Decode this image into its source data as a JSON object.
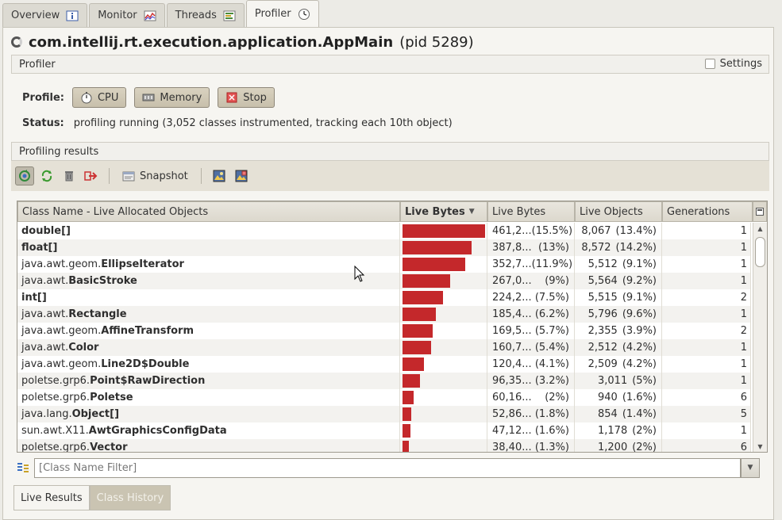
{
  "tabs": [
    {
      "label": "Overview",
      "icon": "info-icon"
    },
    {
      "label": "Monitor",
      "icon": "chart-icon"
    },
    {
      "label": "Threads",
      "icon": "threads-icon"
    },
    {
      "label": "Profiler",
      "icon": "clock-icon"
    }
  ],
  "app": {
    "main_class": "com.intellij.rt.execution.application.AppMain",
    "pid": "(pid 5289)"
  },
  "profiler_section": {
    "title": "Profiler",
    "settings_label": "Settings"
  },
  "profile": {
    "label": "Profile:",
    "cpu": "CPU",
    "memory": "Memory",
    "stop": "Stop"
  },
  "status": {
    "label": "Status:",
    "text": "profiling running (3,052 classes instrumented, tracking each 10th object)"
  },
  "results_section": {
    "title": "Profiling results"
  },
  "toolbar": {
    "snapshot": "Snapshot"
  },
  "table": {
    "columns": [
      "Class Name - Live Allocated Objects",
      "Live Bytes",
      "Live Bytes",
      "Live Objects",
      "Generations"
    ],
    "rows": [
      {
        "prefix": "",
        "name": "double[]",
        "bar_pct": 100,
        "bytes": "461,2...",
        "bytes_pct": "(15.5%)",
        "objects": "8,067",
        "objects_pct": "(13.4%)",
        "gen": "1"
      },
      {
        "prefix": "",
        "name": "float[]",
        "bar_pct": 84,
        "bytes": "387,8...",
        "bytes_pct": "(13%)",
        "objects": "8,572",
        "objects_pct": "(14.2%)",
        "gen": "1"
      },
      {
        "prefix": "java.awt.geom.",
        "name": "EllipseIterator",
        "bar_pct": 76,
        "bytes": "352,7...",
        "bytes_pct": "(11.9%)",
        "objects": "5,512",
        "objects_pct": "(9.1%)",
        "gen": "1"
      },
      {
        "prefix": "java.awt.",
        "name": "BasicStroke",
        "bar_pct": 58,
        "bytes": "267,0...",
        "bytes_pct": "(9%)",
        "objects": "5,564",
        "objects_pct": "(9.2%)",
        "gen": "1"
      },
      {
        "prefix": "",
        "name": "int[]",
        "bar_pct": 49,
        "bytes": "224,2...",
        "bytes_pct": "(7.5%)",
        "objects": "5,515",
        "objects_pct": "(9.1%)",
        "gen": "2"
      },
      {
        "prefix": "java.awt.",
        "name": "Rectangle",
        "bar_pct": 40,
        "bytes": "185,4...",
        "bytes_pct": "(6.2%)",
        "objects": "5,796",
        "objects_pct": "(9.6%)",
        "gen": "1"
      },
      {
        "prefix": "java.awt.geom.",
        "name": "AffineTransform",
        "bar_pct": 37,
        "bytes": "169,5...",
        "bytes_pct": "(5.7%)",
        "objects": "2,355",
        "objects_pct": "(3.9%)",
        "gen": "2"
      },
      {
        "prefix": "java.awt.",
        "name": "Color",
        "bar_pct": 35,
        "bytes": "160,7...",
        "bytes_pct": "(5.4%)",
        "objects": "2,512",
        "objects_pct": "(4.2%)",
        "gen": "1"
      },
      {
        "prefix": "java.awt.geom.",
        "name": "Line2D$Double",
        "bar_pct": 26,
        "bytes": "120,4...",
        "bytes_pct": "(4.1%)",
        "objects": "2,509",
        "objects_pct": "(4.2%)",
        "gen": "1"
      },
      {
        "prefix": "poletse.grp6.",
        "name": "Point$RawDirection",
        "bar_pct": 21,
        "bytes": "96,35...",
        "bytes_pct": "(3.2%)",
        "objects": "3,011",
        "objects_pct": "(5%)",
        "gen": "1"
      },
      {
        "prefix": "poletse.grp6.",
        "name": "Poletse",
        "bar_pct": 13,
        "bytes": "60,16...",
        "bytes_pct": "(2%)",
        "objects": "940",
        "objects_pct": "(1.6%)",
        "gen": "6"
      },
      {
        "prefix": "java.lang.",
        "name": "Object[]",
        "bar_pct": 11,
        "bytes": "52,86...",
        "bytes_pct": "(1.8%)",
        "objects": "854",
        "objects_pct": "(1.4%)",
        "gen": "5"
      },
      {
        "prefix": "sun.awt.X11.",
        "name": "AwtGraphicsConfigData",
        "bar_pct": 10,
        "bytes": "47,12...",
        "bytes_pct": "(1.6%)",
        "objects": "1,178",
        "objects_pct": "(2%)",
        "gen": "1"
      },
      {
        "prefix": "poletse.grp6.",
        "name": "Vector",
        "bar_pct": 8,
        "bytes": "38,40...",
        "bytes_pct": "(1.3%)",
        "objects": "1,200",
        "objects_pct": "(2%)",
        "gen": "6"
      }
    ]
  },
  "filter": {
    "placeholder": "[Class Name Filter]"
  },
  "bottom_tabs": [
    "Live Results",
    "Class History"
  ],
  "colors": {
    "bar": "#c4282b",
    "accent": "#c7bfab"
  }
}
